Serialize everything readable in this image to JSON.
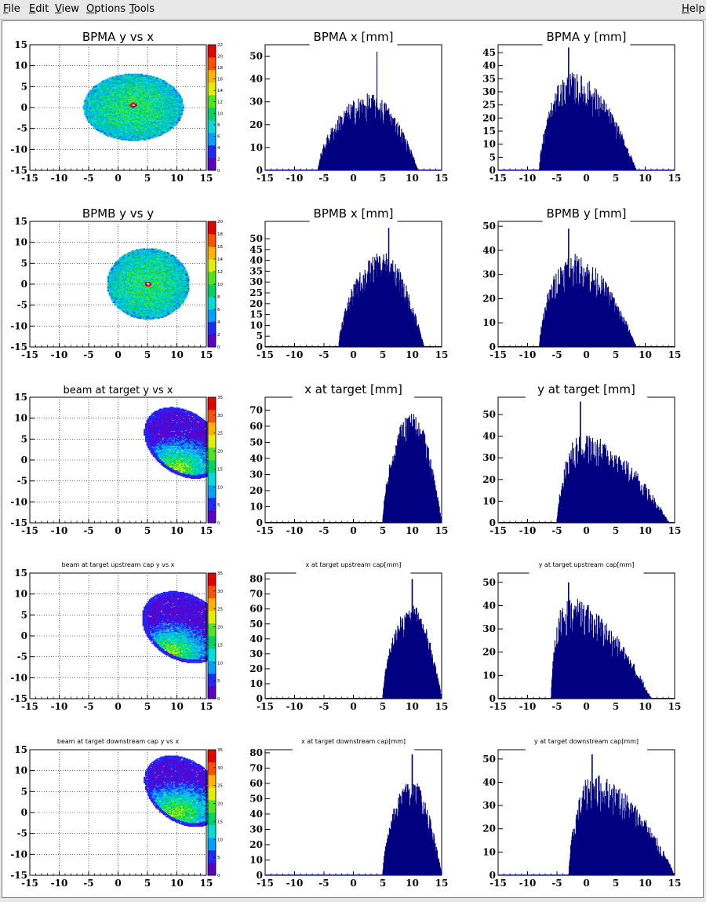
{
  "menubar": {
    "items": [
      {
        "key": "file",
        "label": "File",
        "ul": "F",
        "rest": "ile"
      },
      {
        "key": "edit",
        "label": "Edit",
        "ul": "E",
        "rest": "dit"
      },
      {
        "key": "view",
        "label": "View",
        "ul": "V",
        "rest": "iew"
      },
      {
        "key": "options",
        "label": "Options",
        "ul": "O",
        "rest": "ptions"
      },
      {
        "key": "tools",
        "label": "Tools",
        "ul": "T",
        "rest": "ools"
      }
    ],
    "help": {
      "label": "Help",
      "ul": "H",
      "rest": "elp"
    }
  },
  "colors": {
    "hist": "#000080",
    "palette": [
      "#5a00c8",
      "#1e28ff",
      "#00a0ff",
      "#00dcdc",
      "#00d264",
      "#50e61e",
      "#dcf000",
      "#ffb400",
      "#ff5000",
      "#e60000"
    ]
  },
  "chart_data": [
    {
      "type": "heatmap",
      "title": "BPMA y vs x",
      "xlim": [
        -15,
        15
      ],
      "ylim": [
        -15,
        15
      ],
      "xticks": [
        "-15",
        "-10",
        "-5",
        "0",
        "5",
        "10",
        "15"
      ],
      "yticks": [
        "-15",
        "-10",
        "-5",
        "0",
        "5",
        "10",
        "15"
      ],
      "zticks": [
        "0",
        "2",
        "4",
        "6",
        "8",
        "10",
        "12",
        "14",
        "16",
        "18",
        "20",
        "22"
      ],
      "zmax": 22,
      "shape": "ellipse",
      "center": [
        2.5,
        0
      ],
      "radii": [
        8.5,
        8
      ],
      "hole": [
        2.5,
        0.5
      ]
    },
    {
      "type": "bar",
      "title": "BPMA x [mm]",
      "xlim": [
        -15,
        15
      ],
      "ylim": [
        0,
        55
      ],
      "xticks": [
        "-15",
        "-10",
        "-5",
        "0",
        "5",
        "10",
        "15"
      ],
      "yticks": [
        "0",
        "10",
        "20",
        "30",
        "40",
        "50"
      ],
      "range": [
        -6,
        11
      ],
      "peak": 27,
      "peak_at": 3,
      "spike": 52,
      "spike_at": 4
    },
    {
      "type": "bar",
      "title": "BPMA y [mm]",
      "xlim": [
        -15,
        15
      ],
      "ylim": [
        0,
        48
      ],
      "xticks": [
        "-15",
        "-10",
        "-5",
        "0",
        "5",
        "10",
        "15"
      ],
      "yticks": [
        "0",
        "5",
        "10",
        "15",
        "20",
        "25",
        "30",
        "35",
        "40",
        "45"
      ],
      "range": [
        -8,
        8.5
      ],
      "peak": 30,
      "peak_at": -2.5,
      "spike": 47,
      "spike_at": -3
    },
    {
      "type": "heatmap",
      "title": "BPMB y vs y",
      "xlim": [
        -15,
        15
      ],
      "ylim": [
        -15,
        15
      ],
      "xticks": [
        "-15",
        "-10",
        "-5",
        "0",
        "5",
        "10",
        "15"
      ],
      "yticks": [
        "-15",
        "-10",
        "-5",
        "0",
        "5",
        "10",
        "15"
      ],
      "zticks": [
        "0",
        "2",
        "4",
        "6",
        "8",
        "10",
        "12",
        "14",
        "16",
        "18",
        "20"
      ],
      "zmax": 20,
      "shape": "ellipse",
      "center": [
        5,
        0
      ],
      "radii": [
        7,
        8.5
      ],
      "hole": [
        5,
        0
      ]
    },
    {
      "type": "bar",
      "title": "BPMB x [mm]",
      "xlim": [
        -15,
        15
      ],
      "ylim": [
        0,
        58
      ],
      "xticks": [
        "-15",
        "-10",
        "-5",
        "0",
        "5",
        "10",
        "15"
      ],
      "yticks": [
        "0",
        "5",
        "10",
        "15",
        "20",
        "25",
        "30",
        "35",
        "40",
        "45",
        "50"
      ],
      "range": [
        -2.5,
        12
      ],
      "peak": 35,
      "peak_at": 5,
      "spike": 55,
      "spike_at": 6
    },
    {
      "type": "bar",
      "title": "BPMB y [mm]",
      "xlim": [
        -15,
        15
      ],
      "ylim": [
        0,
        52
      ],
      "xticks": [
        "-15",
        "-10",
        "-5",
        "0",
        "5",
        "10",
        "15"
      ],
      "yticks": [
        "0",
        "10",
        "20",
        "30",
        "40",
        "50"
      ],
      "range": [
        -8,
        8.5
      ],
      "peak": 31,
      "peak_at": -2.5,
      "spike": 49,
      "spike_at": -3
    },
    {
      "type": "heatmap",
      "title": "beam at target y vs x",
      "xlim": [
        -15,
        15
      ],
      "ylim": [
        -15,
        15
      ],
      "xticks": [
        "-15",
        "-10",
        "-5",
        "0",
        "5",
        "10",
        "15"
      ],
      "yticks": [
        "-15",
        "-10",
        "-5",
        "0",
        "5",
        "10",
        "15"
      ],
      "zticks": [
        "0",
        "5",
        "10",
        "15",
        "20",
        "25",
        "30",
        "35"
      ],
      "zmax": 35,
      "shape": "blob",
      "center": [
        11,
        4
      ],
      "radii": [
        6,
        9
      ],
      "hole": [
        10,
        -2
      ]
    },
    {
      "type": "bar",
      "title": "x at target [mm]",
      "xlim": [
        -15,
        15
      ],
      "ylim": [
        0,
        78
      ],
      "xticks": [
        "-15",
        "-10",
        "-5",
        "0",
        "5",
        "10",
        "15"
      ],
      "yticks": [
        "0",
        "10",
        "20",
        "30",
        "40",
        "50",
        "60",
        "70"
      ],
      "range": [
        5,
        15
      ],
      "peak": 55,
      "peak_at": 10,
      "spike": 60,
      "spike_at": 10
    },
    {
      "type": "bar",
      "title": "y at target [mm]",
      "xlim": [
        -15,
        15
      ],
      "ylim": [
        0,
        58
      ],
      "xticks": [
        "-15",
        "-10",
        "-5",
        "0",
        "5",
        "10",
        "15"
      ],
      "yticks": [
        "0",
        "10",
        "20",
        "30",
        "40",
        "50"
      ],
      "range": [
        -5,
        14
      ],
      "peak": 33,
      "peak_at": -1,
      "spike": 56,
      "spike_at": -1
    },
    {
      "type": "heatmap",
      "title": "beam at target upstream cap y vs x",
      "xlim": [
        -15,
        15
      ],
      "ylim": [
        -15,
        15
      ],
      "xticks": [
        "-15",
        "-10",
        "-5",
        "0",
        "5",
        "10",
        "15"
      ],
      "yticks": [
        "-15",
        "-10",
        "-5",
        "0",
        "5",
        "10",
        "15"
      ],
      "zticks": [
        "0",
        "5",
        "10",
        "15",
        "20",
        "25",
        "30",
        "35"
      ],
      "zmax": 35,
      "shape": "blob",
      "center": [
        11,
        2
      ],
      "radii": [
        6.5,
        9
      ],
      "hole": [
        9,
        -4
      ]
    },
    {
      "type": "bar",
      "title": "x at target upstream cap[mm]",
      "xlim": [
        -15,
        15
      ],
      "ylim": [
        0,
        84
      ],
      "xticks": [
        "-15",
        "-10",
        "-5",
        "0",
        "5",
        "10",
        "15"
      ],
      "yticks": [
        "0",
        "10",
        "20",
        "30",
        "40",
        "50",
        "60",
        "70",
        "80"
      ],
      "range": [
        5,
        15
      ],
      "peak": 50,
      "peak_at": 10,
      "spike": 80,
      "spike_at": 10
    },
    {
      "type": "bar",
      "title": "y at target upstream cap[mm]",
      "xlim": [
        -15,
        15
      ],
      "ylim": [
        0,
        54
      ],
      "xticks": [
        "-15",
        "-10",
        "-5",
        "0",
        "5",
        "10",
        "15"
      ],
      "yticks": [
        "0",
        "10",
        "20",
        "30",
        "40",
        "50"
      ],
      "range": [
        -6,
        11
      ],
      "peak": 35,
      "peak_at": -3.5,
      "spike": 50,
      "spike_at": -3
    },
    {
      "type": "heatmap",
      "title": "beam at target downstream cap y vs x",
      "xlim": [
        -15,
        15
      ],
      "ylim": [
        -15,
        15
      ],
      "xticks": [
        "-15",
        "-10",
        "-5",
        "0",
        "5",
        "10",
        "15"
      ],
      "yticks": [
        "-15",
        "-10",
        "-5",
        "0",
        "5",
        "10",
        "15"
      ],
      "zticks": [
        "0",
        "5",
        "10",
        "15",
        "20",
        "25",
        "30",
        "35"
      ],
      "zmax": 35,
      "shape": "blob",
      "center": [
        11,
        5
      ],
      "radii": [
        6,
        9
      ],
      "hole": [
        10,
        0
      ]
    },
    {
      "type": "bar",
      "title": "x at target downstream cap[mm]",
      "xlim": [
        -15,
        15
      ],
      "ylim": [
        0,
        82
      ],
      "xticks": [
        "-15",
        "-10",
        "-5",
        "0",
        "5",
        "10",
        "15"
      ],
      "yticks": [
        "0",
        "10",
        "20",
        "30",
        "40",
        "50",
        "60",
        "70",
        "80"
      ],
      "range": [
        5,
        15
      ],
      "peak": 50,
      "peak_at": 10,
      "spike": 79,
      "spike_at": 10
    },
    {
      "type": "bar",
      "title": "y at target downstream cap[mm]",
      "xlim": [
        -15,
        15
      ],
      "ylim": [
        0,
        54
      ],
      "xticks": [
        "-15",
        "-10",
        "-5",
        "0",
        "5",
        "10",
        "15"
      ],
      "yticks": [
        "0",
        "10",
        "20",
        "30",
        "40",
        "50"
      ],
      "range": [
        -3,
        15
      ],
      "peak": 35,
      "peak_at": 1,
      "spike": 52,
      "spike_at": 1
    }
  ]
}
